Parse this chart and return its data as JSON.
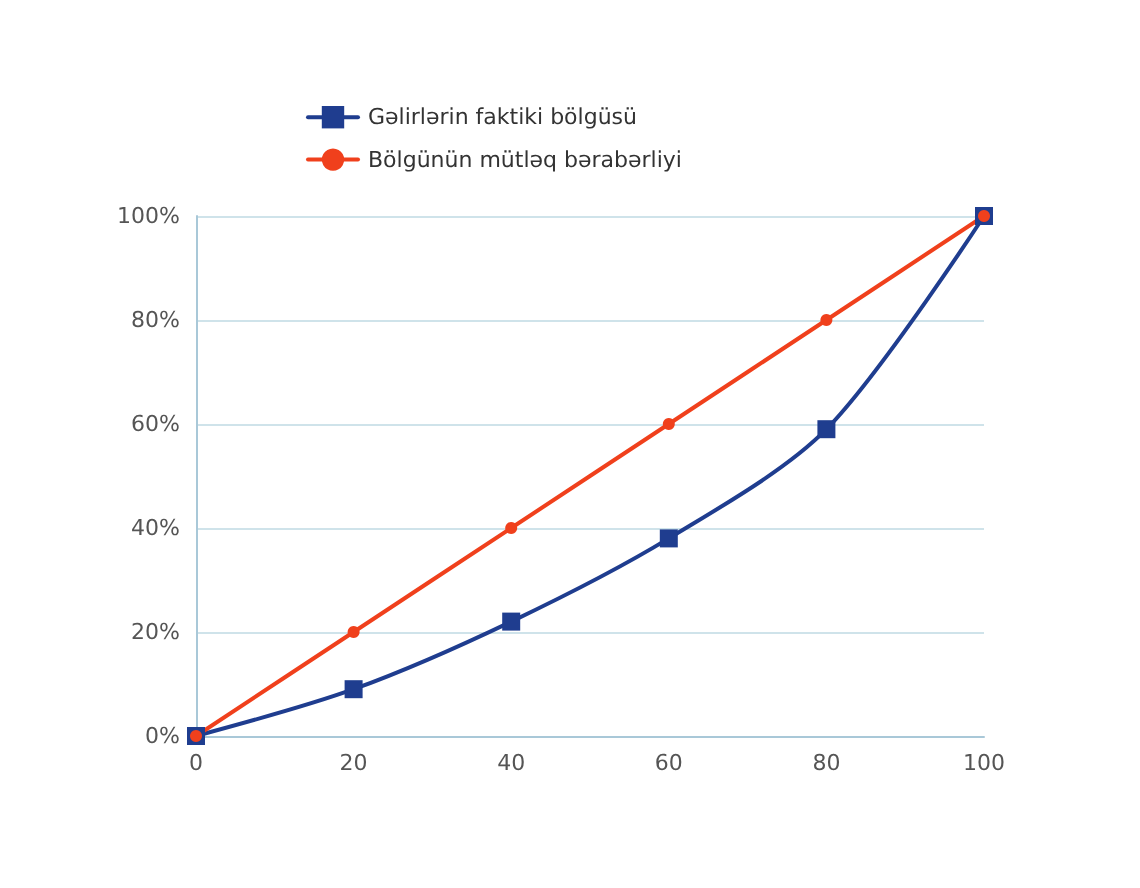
{
  "chart_data": {
    "type": "line",
    "x": [
      0,
      20,
      40,
      60,
      80,
      100
    ],
    "series": [
      {
        "name": "Gəlirlərin faktiki bölgüsü",
        "color": "#1f3d8f",
        "marker": "square",
        "values": [
          0,
          9,
          22,
          38,
          59,
          100
        ]
      },
      {
        "name": "Bölgünün mütləq bərabərliyi",
        "color": "#f0401c",
        "marker": "circle",
        "values": [
          0,
          20,
          40,
          60,
          80,
          100
        ]
      }
    ],
    "xlim": [
      0,
      100
    ],
    "xticks": [
      0,
      20,
      40,
      60,
      80,
      100
    ],
    "ylim": [
      0,
      100
    ],
    "yticks": [
      {
        "value": 0,
        "label": "0%"
      },
      {
        "value": 20,
        "label": "20%"
      },
      {
        "value": 40,
        "label": "40%"
      },
      {
        "value": 60,
        "label": "60%"
      },
      {
        "value": 80,
        "label": "80%"
      },
      {
        "value": 100,
        "label": "100%"
      }
    ],
    "grid": "y",
    "legend": "top",
    "line_style": "solid"
  }
}
